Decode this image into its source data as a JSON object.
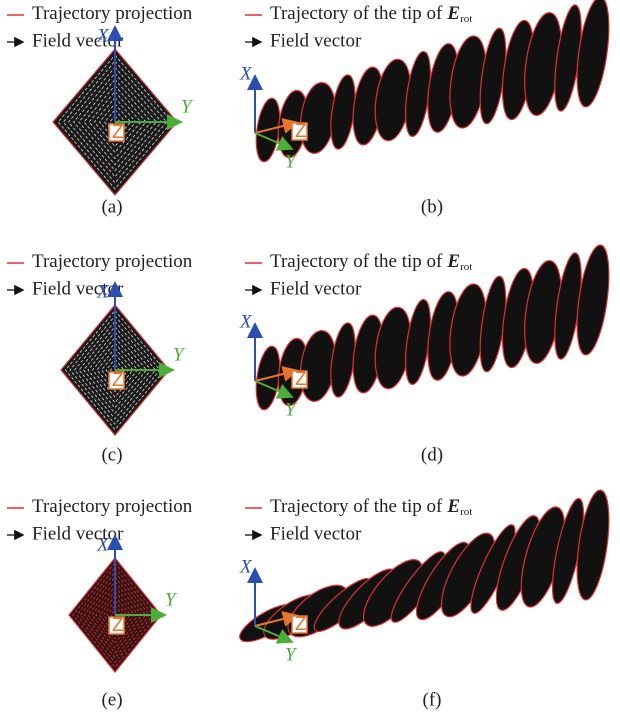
{
  "panels": [
    {
      "caption": "(a)",
      "legend": {
        "trajectory": "Trajectory projection",
        "field": "Field vector"
      },
      "axes": {
        "x": "X",
        "y": "Y",
        "z": "Z"
      }
    },
    {
      "caption": "(b)",
      "legend": {
        "trajectory": "Trajectory of the tip of",
        "vector": "E",
        "subscript": "rot",
        "field": "Field vector"
      },
      "axes": {
        "x": "X",
        "y": "Y",
        "z": "Z"
      }
    },
    {
      "caption": "(c)",
      "legend": {
        "trajectory": "Trajectory projection",
        "field": "Field vector"
      },
      "axes": {
        "x": "X",
        "y": "Y",
        "z": "Z"
      }
    },
    {
      "caption": "(d)",
      "legend": {
        "trajectory": "Trajectory of the tip of",
        "vector": "E",
        "subscript": "rot",
        "field": "Field vector"
      },
      "axes": {
        "x": "X",
        "y": "Y",
        "z": "Z"
      }
    },
    {
      "caption": "(e)",
      "legend": {
        "trajectory": "Trajectory projection",
        "field": "Field vector"
      },
      "axes": {
        "x": "X",
        "y": "Y",
        "z": "Z"
      }
    },
    {
      "caption": "(f)",
      "legend": {
        "trajectory": "Trajectory of the tip of",
        "vector": "E",
        "subscript": "rot",
        "field": "Field vector"
      },
      "axes": {
        "x": "X",
        "y": "Y",
        "z": "Z"
      }
    }
  ]
}
